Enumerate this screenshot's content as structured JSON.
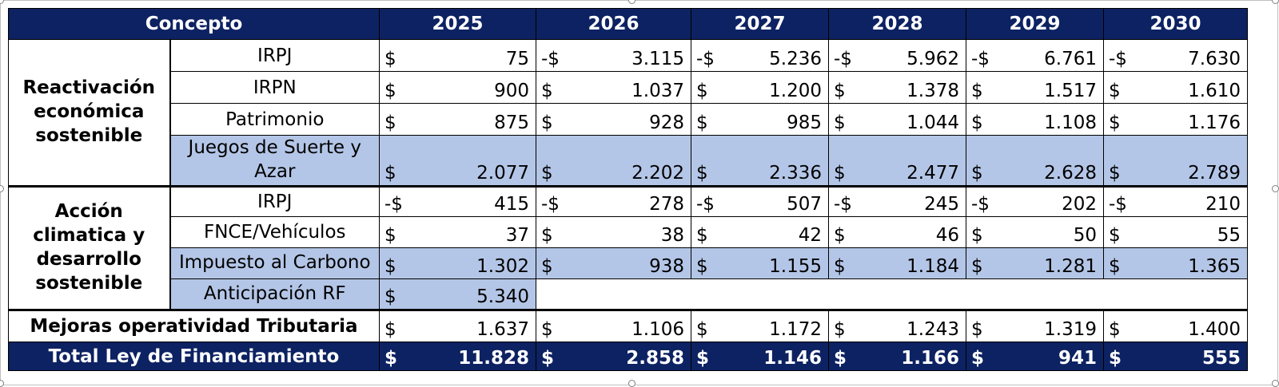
{
  "header": {
    "concepto": "Concepto",
    "years": [
      "2025",
      "2026",
      "2027",
      "2028",
      "2029",
      "2030"
    ]
  },
  "groups": {
    "reactivacion": "Reactivación económica sostenible",
    "accion": "Acción climatica y desarrollo sostenible"
  },
  "rows": [
    {
      "label": "IRPJ",
      "cells": [
        [
          "$",
          "75"
        ],
        [
          "-$",
          "3.115"
        ],
        [
          "-$",
          "5.236"
        ],
        [
          "-$",
          "5.962"
        ],
        [
          "-$",
          "6.761"
        ],
        [
          "-$",
          "7.630"
        ]
      ]
    },
    {
      "label": "IRPN",
      "cells": [
        [
          "$",
          "900"
        ],
        [
          "$",
          "1.037"
        ],
        [
          "$",
          "1.200"
        ],
        [
          "$",
          "1.378"
        ],
        [
          "$",
          "1.517"
        ],
        [
          "$",
          "1.610"
        ]
      ]
    },
    {
      "label": "Patrimonio",
      "cells": [
        [
          "$",
          "875"
        ],
        [
          "$",
          "928"
        ],
        [
          "$",
          "985"
        ],
        [
          "$",
          "1.044"
        ],
        [
          "$",
          "1.108"
        ],
        [
          "$",
          "1.176"
        ]
      ]
    },
    {
      "label": "Juegos de Suerte y Azar",
      "cells": [
        [
          "$",
          "2.077"
        ],
        [
          "$",
          "2.202"
        ],
        [
          "$",
          "2.336"
        ],
        [
          "$",
          "2.477"
        ],
        [
          "$",
          "2.628"
        ],
        [
          "$",
          "2.789"
        ]
      ]
    },
    {
      "label": "IRPJ",
      "cells": [
        [
          "-$",
          "415"
        ],
        [
          "-$",
          "278"
        ],
        [
          "-$",
          "507"
        ],
        [
          "-$",
          "245"
        ],
        [
          "-$",
          "202"
        ],
        [
          "-$",
          "210"
        ]
      ]
    },
    {
      "label": "FNCE/Vehículos",
      "cells": [
        [
          "$",
          "37"
        ],
        [
          "$",
          "38"
        ],
        [
          "$",
          "42"
        ],
        [
          "$",
          "46"
        ],
        [
          "$",
          "50"
        ],
        [
          "$",
          "55"
        ]
      ]
    },
    {
      "label": "Impuesto al Carbono",
      "cells": [
        [
          "$",
          "1.302"
        ],
        [
          "$",
          "938"
        ],
        [
          "$",
          "1.155"
        ],
        [
          "$",
          "1.184"
        ],
        [
          "$",
          "1.281"
        ],
        [
          "$",
          "1.365"
        ]
      ]
    },
    {
      "label": "Anticipación RF",
      "cells": [
        [
          "$",
          "5.340"
        ]
      ]
    }
  ],
  "mejoras": {
    "label": "Mejoras operatividad Tributaria",
    "cells": [
      [
        "$",
        "1.637"
      ],
      [
        "$",
        "1.106"
      ],
      [
        "$",
        "1.172"
      ],
      [
        "$",
        "1.243"
      ],
      [
        "$",
        "1.319"
      ],
      [
        "$",
        "1.400"
      ]
    ]
  },
  "total": {
    "label": "Total Ley de Financiamiento",
    "cells": [
      [
        "$",
        "11.828"
      ],
      [
        "$",
        "2.858"
      ],
      [
        "$",
        "1.146"
      ],
      [
        "$",
        "1.166"
      ],
      [
        "$",
        "941"
      ],
      [
        "$",
        "555"
      ]
    ]
  }
}
